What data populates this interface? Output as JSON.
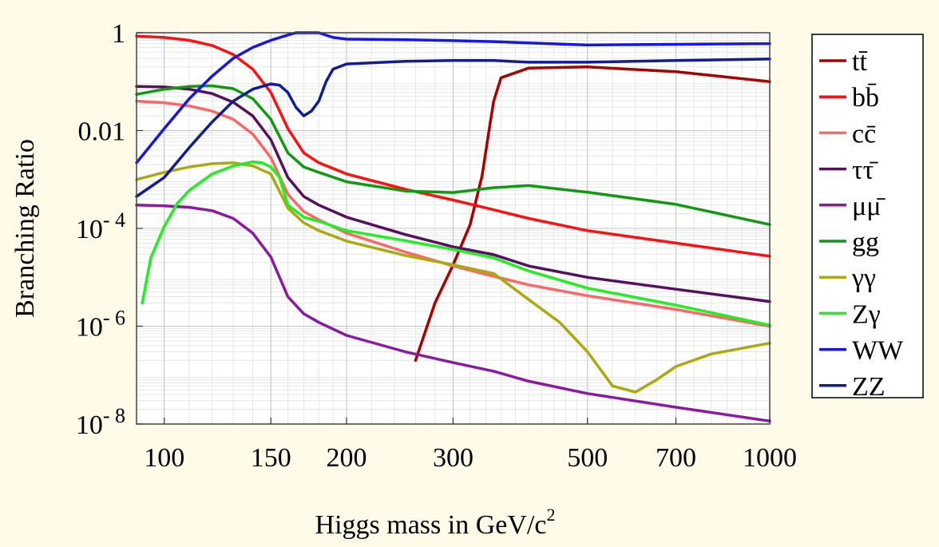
{
  "chart_data": {
    "type": "line",
    "title": "",
    "xlabel": "Higgs mass in GeV/c",
    "xlabel_superscript": "2",
    "ylabel": "Branching Ratio",
    "xscale": "log",
    "yscale": "log",
    "xlim": [
      90,
      1000
    ],
    "ylim": [
      1e-08,
      1
    ],
    "grid": true,
    "legend_placement": "right",
    "x_ticks": [
      {
        "value": 100,
        "label": "100"
      },
      {
        "value": 150,
        "label": "150"
      },
      {
        "value": 200,
        "label": "200"
      },
      {
        "value": 300,
        "label": "300"
      },
      {
        "value": 500,
        "label": "500"
      },
      {
        "value": 700,
        "label": "700"
      },
      {
        "value": 1000,
        "label": "1000"
      }
    ],
    "y_ticks": [
      {
        "value": 1,
        "label": "1",
        "base": "",
        "exp": ""
      },
      {
        "value": 0.01,
        "label": "0.01",
        "base": "",
        "exp": ""
      },
      {
        "value": 0.0001,
        "label": "",
        "base": "10",
        "exp": "- 4"
      },
      {
        "value": 1e-06,
        "label": "",
        "base": "10",
        "exp": "- 6"
      },
      {
        "value": 1e-08,
        "label": "",
        "base": "10",
        "exp": "- 8"
      }
    ],
    "series": [
      {
        "name": "tt̄",
        "color": "#aa0000",
        "x": [
          260,
          280,
          300,
          320,
          335,
          345,
          350,
          360,
          400,
          500,
          700,
          1000
        ],
        "y": [
          2e-07,
          3e-06,
          1.8e-05,
          0.00012,
          0.0012,
          0.013,
          0.04,
          0.12,
          0.19,
          0.2,
          0.16,
          0.1
        ]
      },
      {
        "name": "bb̄",
        "color": "#ff1010",
        "x": [
          90,
          100,
          110,
          120,
          130,
          140,
          150,
          160,
          170,
          180,
          200,
          250,
          300,
          350,
          400,
          500,
          700,
          1000
        ],
        "y": [
          0.85,
          0.8,
          0.7,
          0.55,
          0.36,
          0.18,
          0.06,
          0.011,
          0.0035,
          0.0022,
          0.0013,
          0.00063,
          0.00038,
          0.00024,
          0.00016,
          9e-05,
          5e-05,
          2.7e-05
        ]
      },
      {
        "name": "cc̄",
        "color": "#ff6666",
        "x": [
          90,
          100,
          110,
          120,
          130,
          140,
          150,
          160,
          170,
          180,
          200,
          250,
          300,
          350,
          400,
          500,
          700,
          1000
        ],
        "y": [
          0.04,
          0.037,
          0.032,
          0.025,
          0.017,
          0.0085,
          0.0028,
          0.0005,
          0.00022,
          0.00015,
          8e-05,
          3.3e-05,
          1.7e-05,
          1.05e-05,
          7e-06,
          4.2e-06,
          2.2e-06,
          1e-06
        ]
      },
      {
        "name": "ττ̄",
        "color": "#551060",
        "x": [
          90,
          100,
          110,
          120,
          130,
          140,
          150,
          160,
          170,
          180,
          200,
          250,
          300,
          350,
          400,
          500,
          700,
          1000
        ],
        "y": [
          0.08,
          0.078,
          0.07,
          0.057,
          0.038,
          0.02,
          0.0065,
          0.0011,
          0.00045,
          0.0003,
          0.00017,
          7.5e-05,
          4.2e-05,
          2.9e-05,
          1.7e-05,
          1e-05,
          5.7e-06,
          3.2e-06
        ]
      },
      {
        "name": "μμ̄",
        "color": "#8a1aa0",
        "x": [
          90,
          100,
          110,
          120,
          130,
          140,
          150,
          160,
          170,
          180,
          200,
          250,
          300,
          350,
          400,
          500,
          700,
          1000
        ],
        "y": [
          0.0003,
          0.00029,
          0.00027,
          0.00023,
          0.00016,
          8e-05,
          2.6e-05,
          4e-06,
          1.8e-06,
          1.2e-06,
          6.5e-07,
          3e-07,
          1.8e-07,
          1.2e-07,
          7.5e-08,
          4.2e-08,
          2.2e-08,
          1.15e-08
        ]
      },
      {
        "name": "gg",
        "color": "#119911",
        "x": [
          90,
          100,
          110,
          120,
          130,
          140,
          150,
          160,
          170,
          180,
          200,
          250,
          300,
          350,
          400,
          500,
          700,
          1000
        ],
        "y": [
          0.055,
          0.07,
          0.08,
          0.082,
          0.072,
          0.045,
          0.017,
          0.0035,
          0.0018,
          0.0014,
          0.0009,
          0.00058,
          0.00054,
          0.00068,
          0.00075,
          0.00055,
          0.00031,
          0.00012
        ]
      },
      {
        "name": "γγ",
        "color": "#aaaa10",
        "x": [
          90,
          100,
          110,
          120,
          130,
          140,
          150,
          160,
          170,
          180,
          200,
          250,
          300,
          350,
          400,
          450,
          500,
          550,
          600,
          650,
          700,
          800,
          1000
        ],
        "y": [
          0.001,
          0.0014,
          0.0018,
          0.0021,
          0.0022,
          0.0019,
          0.0013,
          0.00026,
          0.00013,
          9e-05,
          5.5e-05,
          2.8e-05,
          1.8e-05,
          1.2e-05,
          3.5e-06,
          1.2e-06,
          3e-07,
          6e-08,
          4.5e-08,
          8e-08,
          1.5e-07,
          2.7e-07,
          4.5e-07
        ]
      },
      {
        "name": "Zγ",
        "color": "#22ee22",
        "x": [
          92,
          95,
          100,
          105,
          110,
          120,
          130,
          140,
          145,
          150,
          155,
          160,
          170,
          180,
          200,
          250,
          300,
          350,
          400,
          500,
          700,
          1000
        ],
        "y": [
          3e-06,
          2.5e-05,
          0.00011,
          0.00032,
          0.0006,
          0.0013,
          0.0019,
          0.0023,
          0.0022,
          0.0018,
          0.0011,
          0.0003,
          0.00017,
          0.00014,
          9e-05,
          5.6e-05,
          3.7e-05,
          2.5e-05,
          1.35e-05,
          6e-06,
          2.7e-06,
          1.05e-06
        ]
      },
      {
        "name": "WW",
        "color": "#1515ee",
        "x": [
          90,
          100,
          110,
          120,
          130,
          140,
          150,
          160,
          165,
          170,
          180,
          190,
          200,
          250,
          300,
          350,
          400,
          500,
          700,
          1000
        ],
        "y": [
          0.0022,
          0.011,
          0.045,
          0.13,
          0.3,
          0.5,
          0.7,
          0.9,
          1,
          1,
          1,
          0.8,
          0.74,
          0.72,
          0.69,
          0.66,
          0.62,
          0.56,
          0.58,
          0.6
        ]
      },
      {
        "name": "ZZ",
        "color": "#101c9a",
        "x": [
          90,
          100,
          110,
          120,
          130,
          140,
          150,
          155,
          160,
          165,
          170,
          175,
          180,
          185,
          190,
          200,
          250,
          300,
          350,
          400,
          500,
          700,
          1000
        ],
        "y": [
          0.00045,
          0.0011,
          0.0045,
          0.015,
          0.04,
          0.07,
          0.09,
          0.085,
          0.06,
          0.03,
          0.02,
          0.025,
          0.04,
          0.1,
          0.18,
          0.23,
          0.26,
          0.27,
          0.27,
          0.25,
          0.25,
          0.27,
          0.29
        ]
      }
    ]
  }
}
